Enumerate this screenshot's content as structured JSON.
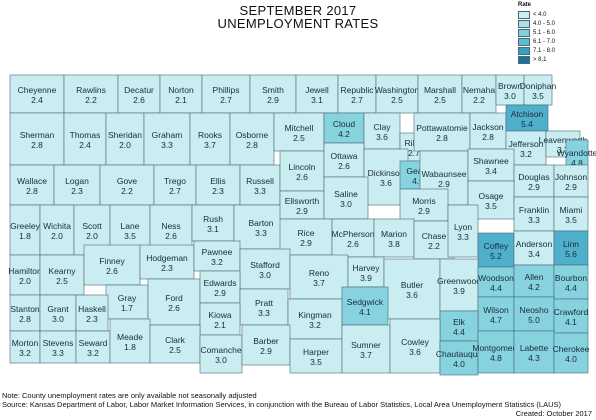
{
  "header": {
    "title_line1": "SEPTEMBER 2017",
    "title_line2": "UNEMPLOYMENT RATES"
  },
  "legend": {
    "title": "Rate",
    "items": [
      {
        "label": "< 4.0",
        "color": "#cdeef2"
      },
      {
        "label": "4.0 - 5.0",
        "color": "#a7e2ea"
      },
      {
        "label": "5.1 - 6.0",
        "color": "#7fd0de"
      },
      {
        "label": "6.1 - 7.0",
        "color": "#58bdd0"
      },
      {
        "label": "7.1 - 8.0",
        "color": "#3a9fbf"
      },
      {
        "label": "> 8.1",
        "color": "#1f6f9f"
      }
    ]
  },
  "colors": {
    "low": "#c9edf1",
    "mid": "#86d3df",
    "high": "#4fb0cb",
    "border": "#4a6a78"
  },
  "counties": [
    {
      "name": "Cheyenne",
      "rate": "2.4"
    },
    {
      "name": "Rawlins",
      "rate": "2.2"
    },
    {
      "name": "Decatur",
      "rate": "2.6"
    },
    {
      "name": "Norton",
      "rate": "2.1"
    },
    {
      "name": "Phillips",
      "rate": "2.7"
    },
    {
      "name": "Smith",
      "rate": "2.9"
    },
    {
      "name": "Jewell",
      "rate": "3.1"
    },
    {
      "name": "Republic",
      "rate": "2.7"
    },
    {
      "name": "Washington",
      "rate": "2.5"
    },
    {
      "name": "Marshall",
      "rate": "2.5"
    },
    {
      "name": "Nemaha",
      "rate": "2.2"
    },
    {
      "name": "Brown",
      "rate": "3.0"
    },
    {
      "name": "Doniphan",
      "rate": "3.5"
    },
    {
      "name": "Sherman",
      "rate": "2.8"
    },
    {
      "name": "Thomas",
      "rate": "2.4"
    },
    {
      "name": "Sheridan",
      "rate": "2.0"
    },
    {
      "name": "Graham",
      "rate": "3.3"
    },
    {
      "name": "Rooks",
      "rate": "3.7"
    },
    {
      "name": "Osborne",
      "rate": "2.8"
    },
    {
      "name": "Mitchell",
      "rate": "2.5"
    },
    {
      "name": "Cloud",
      "rate": "4.2"
    },
    {
      "name": "Clay",
      "rate": "3.6"
    },
    {
      "name": "Riley",
      "rate": "2.7"
    },
    {
      "name": "Pottawatomie",
      "rate": "2.8"
    },
    {
      "name": "Jackson",
      "rate": "2.8"
    },
    {
      "name": "Atchison",
      "rate": "5.4"
    },
    {
      "name": "Jefferson",
      "rate": "3.2"
    },
    {
      "name": "Leavenworth",
      "rate": "3.7"
    },
    {
      "name": "Wyandotte",
      "rate": "4.8"
    },
    {
      "name": "Wallace",
      "rate": "2.8"
    },
    {
      "name": "Logan",
      "rate": "2.3"
    },
    {
      "name": "Gove",
      "rate": "2.2"
    },
    {
      "name": "Trego",
      "rate": "2.7"
    },
    {
      "name": "Ellis",
      "rate": "2.3"
    },
    {
      "name": "Russell",
      "rate": "3.3"
    },
    {
      "name": "Lincoln",
      "rate": "2.6"
    },
    {
      "name": "Ottawa",
      "rate": "2.6"
    },
    {
      "name": "Dickinson",
      "rate": "3.6"
    },
    {
      "name": "Geary",
      "rate": "4.9"
    },
    {
      "name": "Wabaunsee",
      "rate": "2.9"
    },
    {
      "name": "Shawnee",
      "rate": "3.4"
    },
    {
      "name": "Douglas",
      "rate": "2.9"
    },
    {
      "name": "Johnson",
      "rate": "2.9"
    },
    {
      "name": "Greeley",
      "rate": "1.8"
    },
    {
      "name": "Wichita",
      "rate": "2.0"
    },
    {
      "name": "Scott",
      "rate": "2.0"
    },
    {
      "name": "Lane",
      "rate": "3.5"
    },
    {
      "name": "Ness",
      "rate": "2.6"
    },
    {
      "name": "Rush",
      "rate": "3.1"
    },
    {
      "name": "Barton",
      "rate": "3.3"
    },
    {
      "name": "Ellsworth",
      "rate": "2.9"
    },
    {
      "name": "Saline",
      "rate": "3.0"
    },
    {
      "name": "Morris",
      "rate": "2.9"
    },
    {
      "name": "Osage",
      "rate": "3.5"
    },
    {
      "name": "Franklin",
      "rate": "3.3"
    },
    {
      "name": "Miami",
      "rate": "3.5"
    },
    {
      "name": "Rice",
      "rate": "2.9"
    },
    {
      "name": "McPherson",
      "rate": "2.6"
    },
    {
      "name": "Marion",
      "rate": "3.8"
    },
    {
      "name": "Chase",
      "rate": "2.2"
    },
    {
      "name": "Lyon",
      "rate": "3.3"
    },
    {
      "name": "Coffey",
      "rate": "5.2"
    },
    {
      "name": "Anderson",
      "rate": "3.4"
    },
    {
      "name": "Linn",
      "rate": "5.6"
    },
    {
      "name": "Hamilton",
      "rate": "2.0"
    },
    {
      "name": "Kearny",
      "rate": "2.5"
    },
    {
      "name": "Finney",
      "rate": "2.6"
    },
    {
      "name": "Hodgeman",
      "rate": "2.3"
    },
    {
      "name": "Pawnee",
      "rate": "3.2"
    },
    {
      "name": "Stafford",
      "rate": "3.0"
    },
    {
      "name": "Reno",
      "rate": "3.7"
    },
    {
      "name": "Harvey",
      "rate": "3.9"
    },
    {
      "name": "Butler",
      "rate": "3.6"
    },
    {
      "name": "Greenwood",
      "rate": "3.9"
    },
    {
      "name": "Woodson",
      "rate": "4.4"
    },
    {
      "name": "Allen",
      "rate": "4.2"
    },
    {
      "name": "Bourbon",
      "rate": "4.4"
    },
    {
      "name": "Gray",
      "rate": "1.7"
    },
    {
      "name": "Ford",
      "rate": "2.6"
    },
    {
      "name": "Edwards",
      "rate": "2.9"
    },
    {
      "name": "Pratt",
      "rate": "3.3"
    },
    {
      "name": "Kingman",
      "rate": "3.2"
    },
    {
      "name": "Sedgwick",
      "rate": "4.1"
    },
    {
      "name": "Wilson",
      "rate": "4.7"
    },
    {
      "name": "Neosho",
      "rate": "5.0"
    },
    {
      "name": "Crawford",
      "rate": "4.1"
    },
    {
      "name": "Stanton",
      "rate": "2.8"
    },
    {
      "name": "Grant",
      "rate": "3.0"
    },
    {
      "name": "Haskell",
      "rate": "2.3"
    },
    {
      "name": "Kiowa",
      "rate": "2.1"
    },
    {
      "name": "Elk",
      "rate": "4.4"
    },
    {
      "name": "Morton",
      "rate": "3.2"
    },
    {
      "name": "Stevens",
      "rate": "3.3"
    },
    {
      "name": "Seward",
      "rate": "3.2"
    },
    {
      "name": "Meade",
      "rate": "1.8"
    },
    {
      "name": "Clark",
      "rate": "2.5"
    },
    {
      "name": "Comanche",
      "rate": "3.0"
    },
    {
      "name": "Barber",
      "rate": "2.9"
    },
    {
      "name": "Harper",
      "rate": "3.5"
    },
    {
      "name": "Sumner",
      "rate": "3.7"
    },
    {
      "name": "Cowley",
      "rate": "3.6"
    },
    {
      "name": "Chautauqua",
      "rate": "4.0"
    },
    {
      "name": "Montgomery",
      "rate": "4.8"
    },
    {
      "name": "Labette",
      "rate": "4.3"
    },
    {
      "name": "Cherokee",
      "rate": "4.0"
    }
  ],
  "footer": {
    "note": "Note: County unemployment rates are only available not seasonally adjusted",
    "source": "Source: Kansas Department of Labor, Labor Market Information Services, in conjunction with the Bureau of Labor Statistics, Local Area Unemployment Statistics (LAUS)",
    "created": "Created: October 2017"
  }
}
